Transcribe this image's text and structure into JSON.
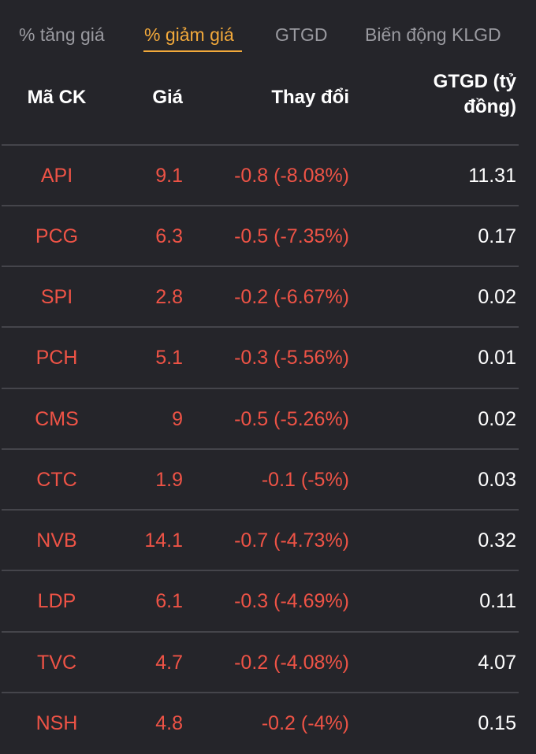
{
  "tabs": [
    {
      "label": "% tăng giá",
      "active": false
    },
    {
      "label": "% giảm giá",
      "active": true
    },
    {
      "label": "GTGD",
      "active": false
    },
    {
      "label": "Biến động KLGD",
      "active": false
    }
  ],
  "columns": {
    "code": "Mã CK",
    "price": "Giá",
    "change": "Thay đổi",
    "value_line1": "GTGD (tỷ",
    "value_line2": "đồng)"
  },
  "colors": {
    "background": "#25252a",
    "active_tab": "#f2a93b",
    "decline": "#ee5346",
    "text": "#ffffff",
    "inactive_tab": "#9a9aa0"
  },
  "rows": [
    {
      "code": "API",
      "price": "9.1",
      "change": "-0.8 (-8.08%)",
      "value": "11.31"
    },
    {
      "code": "PCG",
      "price": "6.3",
      "change": "-0.5 (-7.35%)",
      "value": "0.17"
    },
    {
      "code": "SPI",
      "price": "2.8",
      "change": "-0.2 (-6.67%)",
      "value": "0.02"
    },
    {
      "code": "PCH",
      "price": "5.1",
      "change": "-0.3 (-5.56%)",
      "value": "0.01"
    },
    {
      "code": "CMS",
      "price": "9",
      "change": "-0.5 (-5.26%)",
      "value": "0.02"
    },
    {
      "code": "CTC",
      "price": "1.9",
      "change": "-0.1 (-5%)",
      "value": "0.03"
    },
    {
      "code": "NVB",
      "price": "14.1",
      "change": "-0.7 (-4.73%)",
      "value": "0.32"
    },
    {
      "code": "LDP",
      "price": "6.1",
      "change": "-0.3 (-4.69%)",
      "value": "0.11"
    },
    {
      "code": "TVC",
      "price": "4.7",
      "change": "-0.2 (-4.08%)",
      "value": "4.07"
    },
    {
      "code": "NSH",
      "price": "4.8",
      "change": "-0.2 (-4%)",
      "value": "0.15"
    }
  ]
}
